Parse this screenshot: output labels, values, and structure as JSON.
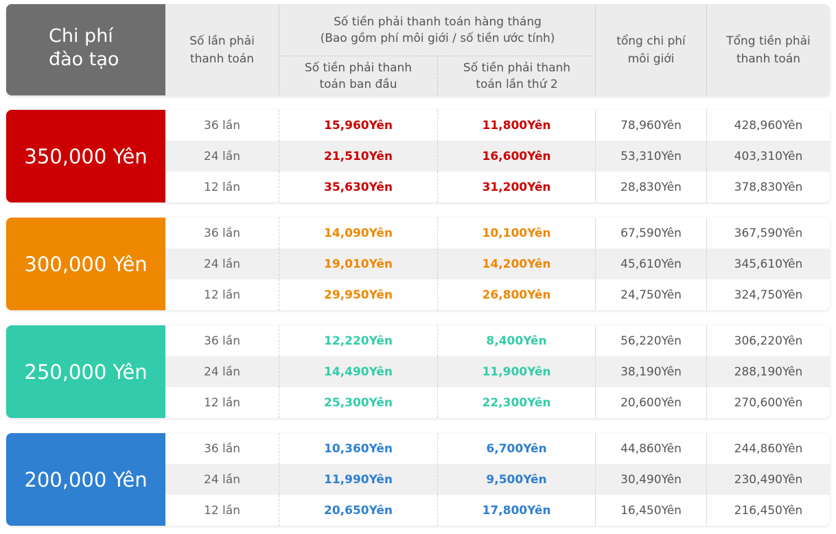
{
  "header": {
    "title_line1": "Chi phí",
    "title_line2": "đào tạo",
    "col_count_line1": "Số lần phải",
    "col_count_line2": "thanh toán",
    "group_line1": "Số tiền phải thanh toán hàng tháng",
    "group_line2": "(Bao gồm phí môi giới / số tiền ước tính)",
    "sub1_line1": "Số tiền phải thanh",
    "sub1_line2": "toán ban đầu",
    "sub2_line1": "Số tiền phải thanh",
    "sub2_line2": "toán lần thứ 2",
    "col_fee_line1": "tổng chi phí",
    "col_fee_line2": "môi giới",
    "col_total_line1": "Tổng tiền phải",
    "col_total_line2": "thanh toán"
  },
  "blocks": [
    {
      "label": "350,000 Yên",
      "color": "#cc0000",
      "rows": [
        {
          "count": "36 lần",
          "first": "15,960Yên",
          "second": "11,800Yên",
          "fee": "78,960Yên",
          "total": "428,960Yên"
        },
        {
          "count": "24 lần",
          "first": "21,510Yên",
          "second": "16,600Yên",
          "fee": "53,310Yên",
          "total": "403,310Yên"
        },
        {
          "count": "12 lần",
          "first": "35,630Yên",
          "second": "31,200Yên",
          "fee": "28,830Yên",
          "total": "378,830Yên"
        }
      ]
    },
    {
      "label": "300,000 Yên",
      "color": "#ee8800",
      "rows": [
        {
          "count": "36 lần",
          "first": "14,090Yên",
          "second": "10,100Yên",
          "fee": "67,590Yên",
          "total": "367,590Yên"
        },
        {
          "count": "24 lần",
          "first": "19,010Yên",
          "second": "14,200Yên",
          "fee": "45,610Yên",
          "total": "345,610Yên"
        },
        {
          "count": "12 lần",
          "first": "29,950Yên",
          "second": "26,800Yên",
          "fee": "24,750Yên",
          "total": "324,750Yên"
        }
      ]
    },
    {
      "label": "250,000 Yên",
      "color": "#33ccaa",
      "rows": [
        {
          "count": "36 lần",
          "first": "12,220Yên",
          "second": "8,400Yên",
          "fee": "56,220Yên",
          "total": "306,220Yên"
        },
        {
          "count": "24 lần",
          "first": "14,490Yên",
          "second": "11,900Yên",
          "fee": "38,190Yên",
          "total": "288,190Yên"
        },
        {
          "count": "12 lần",
          "first": "25,300Yên",
          "second": "22,300Yên",
          "fee": "20,600Yên",
          "total": "270,600Yên"
        }
      ]
    },
    {
      "label": "200,000 Yên",
      "color": "#2f80d0",
      "rows": [
        {
          "count": "36 lần",
          "first": "10,360Yên",
          "second": "6,700Yên",
          "fee": "44,860Yên",
          "total": "244,860Yên"
        },
        {
          "count": "24 lần",
          "first": "11,990Yên",
          "second": "9,500Yên",
          "fee": "30,490Yên",
          "total": "230,490Yên"
        },
        {
          "count": "12 lần",
          "first": "20,650Yên",
          "second": "17,800Yên",
          "fee": "16,450Yên",
          "total": "216,450Yên"
        }
      ]
    }
  ]
}
